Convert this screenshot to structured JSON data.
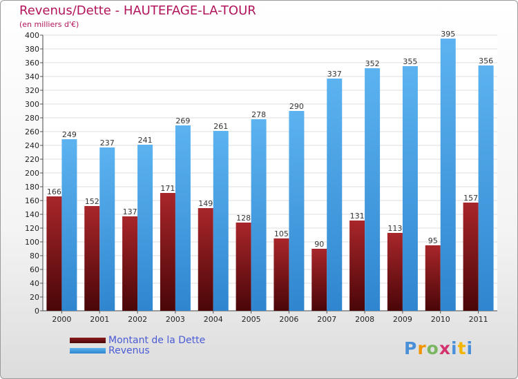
{
  "header": {
    "title": "Revenus/Dette - HAUTEFAGE-LA-TOUR",
    "subtitle": "(en milliers d'€)"
  },
  "legend": {
    "items": [
      {
        "label": "Montant de la Dette",
        "color": "#6b0f12"
      },
      {
        "label": "Revenus",
        "color": "#4aa3e6"
      }
    ]
  },
  "logo": {
    "text": "Proxiti"
  },
  "chart_data": {
    "type": "bar",
    "title": "Revenus/Dette - HAUTEFAGE-LA-TOUR",
    "ylabel": "(en milliers d'€)",
    "xlabel": "",
    "categories": [
      "2000",
      "2001",
      "2002",
      "2003",
      "2004",
      "2005",
      "2006",
      "2007",
      "2008",
      "2009",
      "2010",
      "2011"
    ],
    "series": [
      {
        "name": "Montant de la Dette",
        "color": "#6b0f12",
        "values": [
          166,
          152,
          137,
          171,
          149,
          128,
          105,
          90,
          131,
          113,
          95,
          157
        ]
      },
      {
        "name": "Revenus",
        "color": "#4aa3e6",
        "values": [
          249,
          237,
          241,
          269,
          261,
          278,
          290,
          337,
          352,
          355,
          395,
          356
        ]
      }
    ],
    "ylim": [
      0,
      400
    ],
    "ytick_step": 20,
    "grid": true,
    "legend_position": "bottom-left"
  }
}
